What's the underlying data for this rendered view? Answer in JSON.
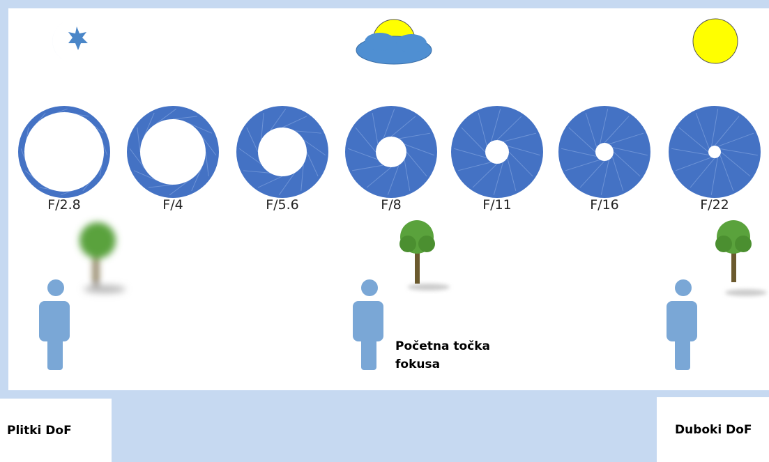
{
  "apertures": [
    "F/2.8",
    "F/4",
    "F/5.6",
    "F/8",
    "F/11",
    "F/16",
    "F/22"
  ],
  "focus_label": "Početna točka fokusa",
  "shallow_label": "Plitki DoF",
  "deep_label": "Duboki DoF"
}
